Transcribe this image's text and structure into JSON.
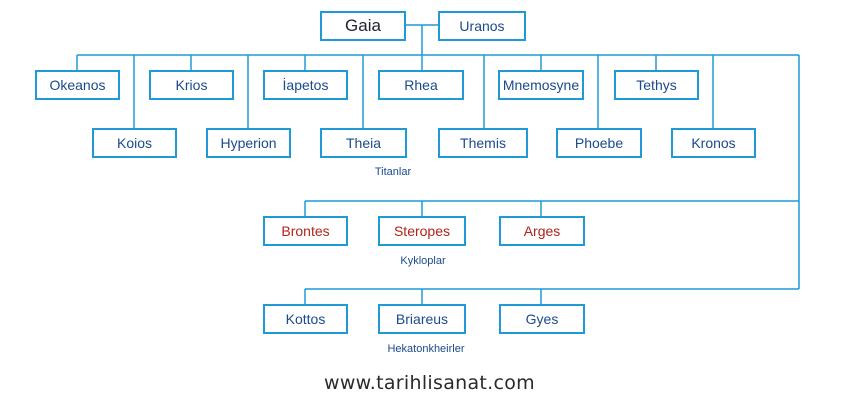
{
  "colors": {
    "line": "#1f9ad6",
    "text": "#1a4a8c",
    "kyklop_text": "#b3221b"
  },
  "parents": {
    "mother": "Gaia",
    "father": "Uranos"
  },
  "titans": {
    "label": "Titanlar",
    "row1": [
      "Okeanos",
      "Krios",
      "İapetos",
      "Rhea",
      "Mnemosyne",
      "Tethys"
    ],
    "row2": [
      "Koios",
      "Hyperion",
      "Theia",
      "Themis",
      "Phoebe",
      "Kronos"
    ]
  },
  "kyklops": {
    "label": "Kykloplar",
    "names": [
      "Brontes",
      "Steropes",
      "Arges"
    ]
  },
  "hekatonkheires": {
    "label": "Hekatonkheirler",
    "names": [
      "Kottos",
      "Briareus",
      "Gyes"
    ]
  },
  "footer": "www.tarihlisanat.com"
}
